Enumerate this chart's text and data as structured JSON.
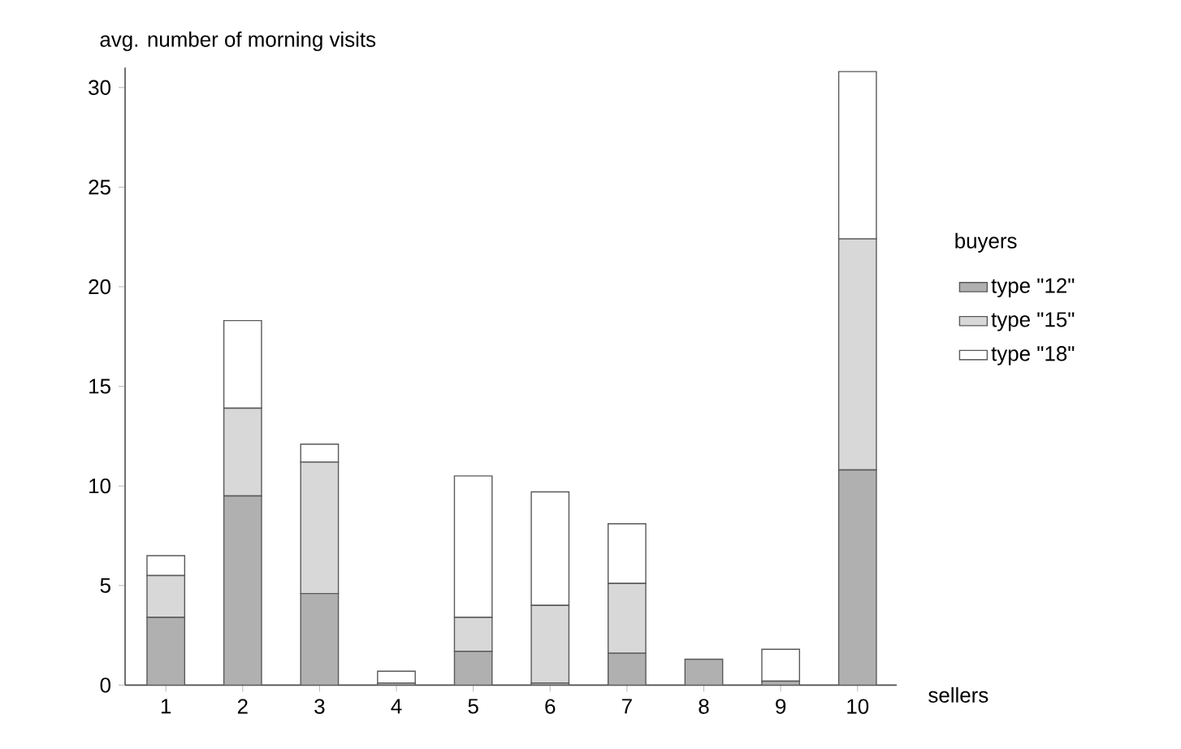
{
  "chart_data": {
    "type": "bar",
    "stacked": true,
    "ylabel": "avg. number of morning visits",
    "xlabel": "sellers",
    "legend_title": "buyers",
    "legend": "right",
    "categories": [
      "1",
      "2",
      "3",
      "4",
      "5",
      "6",
      "7",
      "8",
      "9",
      "10"
    ],
    "ylim": [
      0,
      31
    ],
    "yticks": [
      0,
      5,
      10,
      15,
      20,
      25,
      30
    ],
    "series": [
      {
        "name": "type \"12\"",
        "color": "#b0b0b0",
        "values": [
          3.4,
          9.5,
          4.6,
          0.1,
          1.7,
          0.1,
          1.6,
          1.3,
          0.2,
          10.8
        ]
      },
      {
        "name": "type \"15\"",
        "color": "#d8d8d8",
        "values": [
          2.1,
          4.4,
          6.6,
          0,
          1.7,
          3.9,
          3.5,
          0,
          0,
          11.6
        ]
      },
      {
        "name": "type \"18\"",
        "color": "#ffffff",
        "values": [
          1.0,
          4.4,
          0.9,
          0.6,
          7.1,
          5.7,
          3.0,
          0,
          1.6,
          8.4
        ]
      }
    ]
  }
}
